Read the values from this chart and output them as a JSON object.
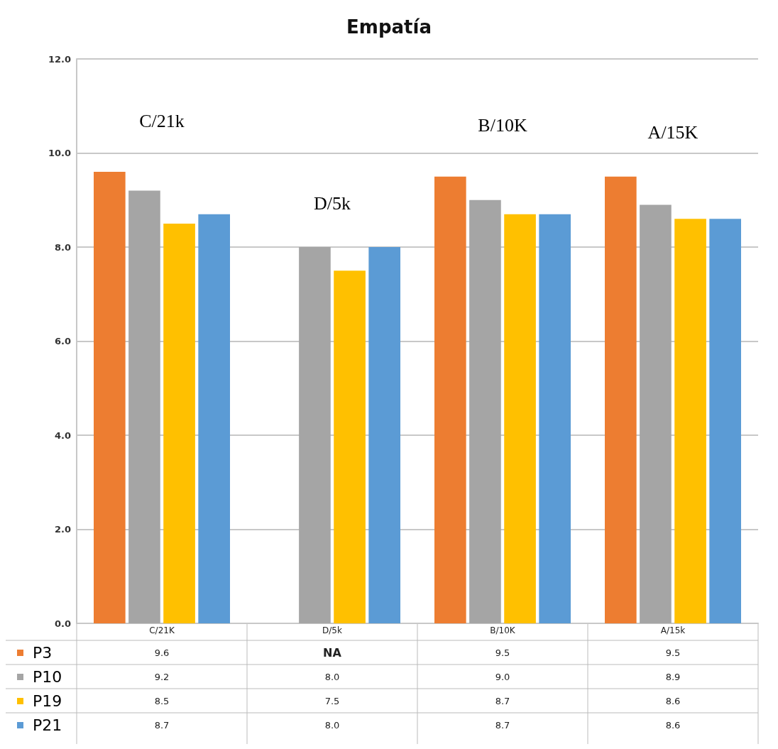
{
  "chart_data": {
    "type": "bar",
    "title": "Empatía",
    "categories": [
      "C/21K",
      "D/5k",
      "B/10K",
      "A/15k"
    ],
    "series": [
      {
        "name": "P3",
        "color": "#ed7d31",
        "values": [
          9.6,
          null,
          9.5,
          9.5
        ],
        "value_labels": [
          "9.6",
          "NA",
          "9.5",
          "9.5"
        ]
      },
      {
        "name": "P10",
        "color": "#a5a5a5",
        "values": [
          9.2,
          8.0,
          9.0,
          8.9
        ],
        "value_labels": [
          "9.2",
          "8.0",
          "9.0",
          "8.9"
        ]
      },
      {
        "name": "P19",
        "color": "#ffc000",
        "values": [
          8.5,
          7.5,
          8.7,
          8.6
        ],
        "value_labels": [
          "8.5",
          "7.5",
          "8.7",
          "8.6"
        ]
      },
      {
        "name": "P21",
        "color": "#5b9bd5",
        "values": [
          8.7,
          8.0,
          8.7,
          8.6
        ],
        "value_labels": [
          "8.7",
          "8.0",
          "8.7",
          "8.6"
        ]
      }
    ],
    "annotations": [
      "C/21k",
      "D/5k",
      "B/10K",
      "A/15K"
    ],
    "ylim": [
      0,
      12
    ],
    "yticks": [
      {
        "value": 0,
        "label": "0.0"
      },
      {
        "value": 2,
        "label": "2.0"
      },
      {
        "value": 4,
        "label": "4.0"
      },
      {
        "value": 6,
        "label": "6.0"
      },
      {
        "value": 8,
        "label": "8.0"
      },
      {
        "value": 10,
        "label": "10.0"
      },
      {
        "value": 12,
        "label": "12.0"
      }
    ],
    "grid": "y",
    "legend": "bottom left"
  }
}
